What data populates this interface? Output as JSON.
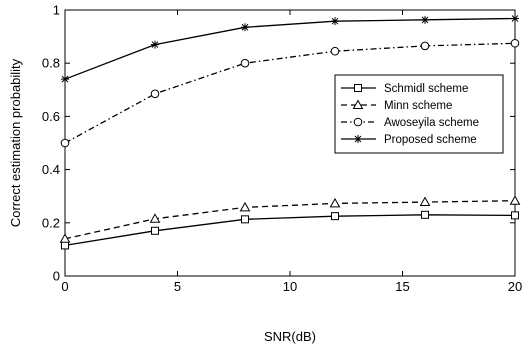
{
  "chart_data": {
    "type": "line",
    "x": [
      0,
      4,
      8,
      12,
      16,
      20
    ],
    "xlabel": "SNR(dB)",
    "ylabel": "Correct estimation probability",
    "xlim": [
      0,
      20
    ],
    "ylim": [
      0,
      1
    ],
    "xticks": [
      0,
      5,
      10,
      15,
      20
    ],
    "yticks": [
      0,
      0.2,
      0.4,
      0.6,
      0.8,
      1
    ],
    "xtick_labels": [
      "0",
      "5",
      "10",
      "15",
      "20"
    ],
    "ytick_labels": [
      "0",
      "0.2",
      "0.4",
      "0.6",
      "0.8",
      "1"
    ],
    "grid": false,
    "legend_position": "right",
    "series": [
      {
        "name": "Schmidl scheme",
        "marker": "square",
        "dash": "solid",
        "values": [
          0.115,
          0.17,
          0.213,
          0.225,
          0.23,
          0.228
        ]
      },
      {
        "name": "Minn scheme",
        "marker": "triangle",
        "dash": "dashed",
        "values": [
          0.14,
          0.215,
          0.258,
          0.273,
          0.278,
          0.283
        ]
      },
      {
        "name": "Awoseyila scheme",
        "marker": "circle",
        "dash": "dashdot",
        "values": [
          0.5,
          0.685,
          0.8,
          0.845,
          0.865,
          0.875
        ]
      },
      {
        "name": "Proposed scheme",
        "marker": "star",
        "dash": "solid",
        "values": [
          0.74,
          0.87,
          0.935,
          0.958,
          0.963,
          0.968
        ]
      }
    ]
  }
}
